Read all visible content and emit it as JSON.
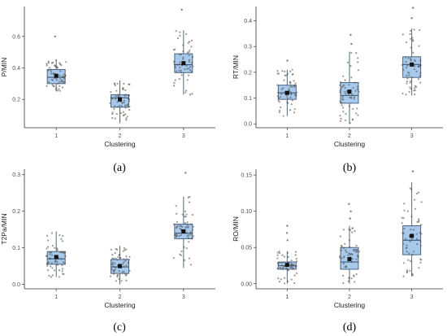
{
  "figure": {
    "colors": {
      "box_fill": "#a7c9ec",
      "box_stroke": "#3f5873",
      "point": "#555555",
      "axis": "#333333",
      "mean": "#111111"
    }
  },
  "chart_data": [
    {
      "type": "box",
      "caption": "(a)",
      "xlabel": "Clustering",
      "ylabel": "P/MIN",
      "categories": [
        "1",
        "2",
        "3"
      ],
      "ylim": [
        0.02,
        0.79
      ],
      "yticks": [
        0.2,
        0.4,
        0.6
      ],
      "ytick_labels": [
        "0.2",
        "0.4",
        "0.6"
      ],
      "grid": false,
      "boxes": [
        {
          "category": "1",
          "min": 0.25,
          "q1": 0.3,
          "median": 0.34,
          "q3": 0.39,
          "max": 0.45,
          "mean": 0.35,
          "outliers": [
            0.6
          ]
        },
        {
          "category": "2",
          "min": 0.05,
          "q1": 0.15,
          "median": 0.21,
          "q3": 0.23,
          "max": 0.32,
          "mean": 0.2,
          "outliers": []
        },
        {
          "category": "3",
          "min": 0.23,
          "q1": 0.37,
          "median": 0.42,
          "q3": 0.49,
          "max": 0.64,
          "mean": 0.43,
          "outliers": [
            0.77
          ]
        }
      ]
    },
    {
      "type": "box",
      "caption": "(b)",
      "xlabel": "Clustering",
      "ylabel": "RT/MIN",
      "categories": [
        "1",
        "2",
        "3"
      ],
      "ylim": [
        -0.015,
        0.455
      ],
      "yticks": [
        0.0,
        0.1,
        0.2,
        0.3,
        0.4
      ],
      "ytick_labels": [
        "0.0",
        "0.1",
        "0.2",
        "0.3",
        "0.4"
      ],
      "grid": false,
      "boxes": [
        {
          "category": "1",
          "min": 0.03,
          "q1": 0.095,
          "median": 0.12,
          "q3": 0.15,
          "max": 0.21,
          "mean": 0.12,
          "outliers": [
            0.245
          ]
        },
        {
          "category": "2",
          "min": 0.0,
          "q1": 0.08,
          "median": 0.11,
          "q3": 0.16,
          "max": 0.28,
          "mean": 0.125,
          "outliers": [
            0.31,
            0.345
          ]
        },
        {
          "category": "3",
          "min": 0.11,
          "q1": 0.18,
          "median": 0.23,
          "q3": 0.26,
          "max": 0.37,
          "mean": 0.23,
          "outliers": [
            0.41,
            0.45
          ]
        }
      ]
    },
    {
      "type": "box",
      "caption": "(c)",
      "xlabel": "Clustering",
      "ylabel": "T2Pa/MIN",
      "categories": [
        "1",
        "2",
        "3"
      ],
      "ylim": [
        -0.012,
        0.315
      ],
      "yticks": [
        0.0,
        0.1,
        0.2,
        0.3
      ],
      "ytick_labels": [
        "0.0",
        "0.1",
        "0.2",
        "0.3"
      ],
      "grid": false,
      "boxes": [
        {
          "category": "1",
          "min": 0.02,
          "q1": 0.055,
          "median": 0.07,
          "q3": 0.09,
          "max": 0.145,
          "mean": 0.075,
          "outliers": []
        },
        {
          "category": "2",
          "min": 0.0,
          "q1": 0.03,
          "median": 0.048,
          "q3": 0.068,
          "max": 0.105,
          "mean": 0.05,
          "outliers": []
        },
        {
          "category": "3",
          "min": 0.045,
          "q1": 0.125,
          "median": 0.14,
          "q3": 0.165,
          "max": 0.24,
          "mean": 0.145,
          "outliers": [
            0.305
          ]
        }
      ]
    },
    {
      "type": "box",
      "caption": "(d)",
      "xlabel": "Clustering",
      "ylabel": "RO/MIN",
      "categories": [
        "1",
        "2",
        "3"
      ],
      "ylim": [
        -0.007,
        0.158
      ],
      "yticks": [
        0.0,
        0.05,
        0.1,
        0.15
      ],
      "ytick_labels": [
        "0.00",
        "0.05",
        "0.10",
        "0.15"
      ],
      "grid": false,
      "boxes": [
        {
          "category": "1",
          "min": 0.0,
          "q1": 0.02,
          "median": 0.025,
          "q3": 0.03,
          "max": 0.045,
          "mean": 0.026,
          "outliers": [
            0.06,
            0.07,
            0.08
          ]
        },
        {
          "category": "2",
          "min": 0.0,
          "q1": 0.02,
          "median": 0.03,
          "q3": 0.05,
          "max": 0.08,
          "mean": 0.034,
          "outliers": [
            0.09,
            0.1,
            0.11
          ]
        },
        {
          "category": "3",
          "min": 0.01,
          "q1": 0.04,
          "median": 0.06,
          "q3": 0.08,
          "max": 0.14,
          "mean": 0.066,
          "outliers": [
            0.155
          ]
        }
      ]
    }
  ]
}
